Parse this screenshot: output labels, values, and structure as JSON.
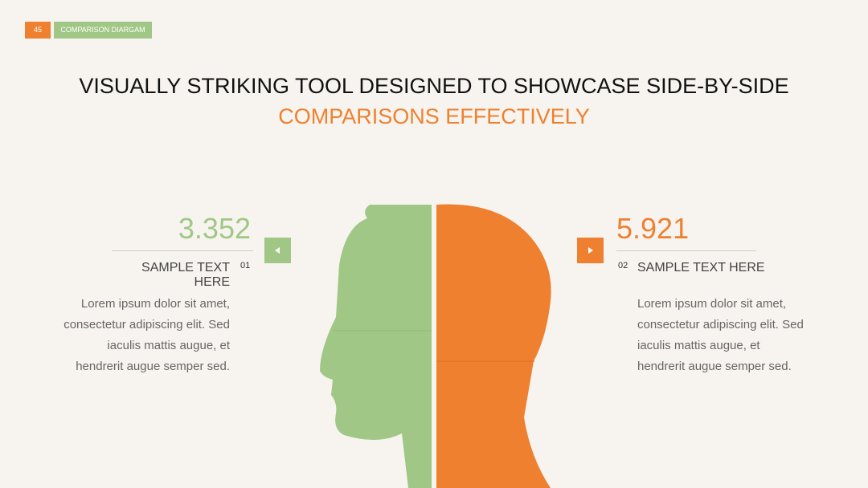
{
  "header": {
    "page_number": "45",
    "label": "COMPARISON DIARGAM"
  },
  "title": {
    "main": "VISUALLY STRIKING TOOL DESIGNED TO SHOWCASE SIDE-BY-SIDE",
    "highlight": "COMPARISONS EFFECTIVELY"
  },
  "left": {
    "value": "3.352",
    "heading": "SAMPLE TEXT HERE",
    "number": "01",
    "body": [
      "Lorem ipsum dolor sit amet,",
      "consectetur adipiscing elit. Sed",
      "iaculis mattis augue, et",
      "hendrerit augue semper sed."
    ]
  },
  "right": {
    "value": "5.921",
    "heading": "SAMPLE TEXT HERE",
    "number": "02",
    "body": [
      "Lorem ipsum dolor sit amet,",
      "consectetur adipiscing elit. Sed",
      "iaculis mattis augue, et",
      "hendrerit augue semper sed."
    ]
  }
}
